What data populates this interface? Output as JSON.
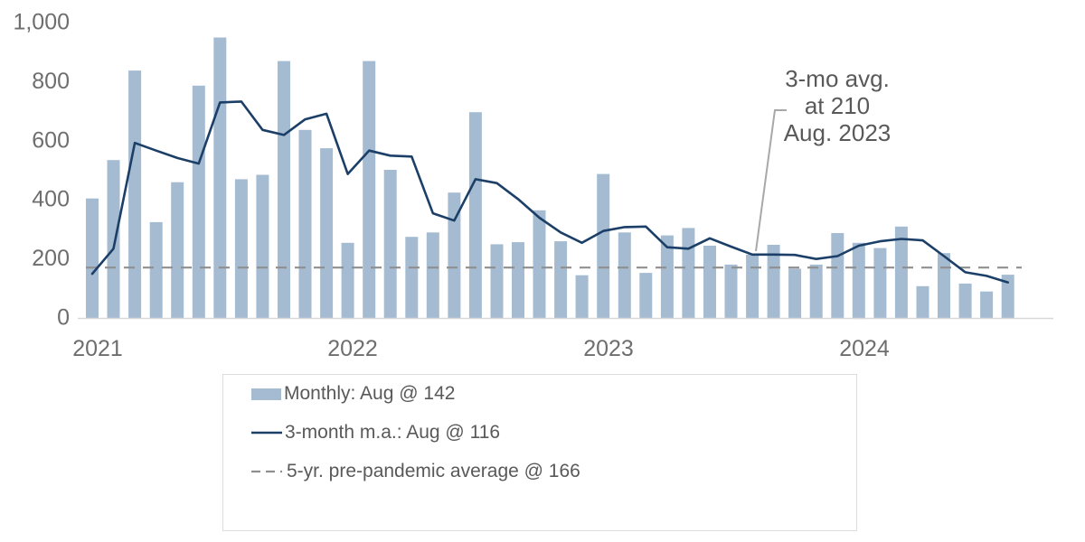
{
  "page": {
    "background": "#ffffff"
  },
  "colors": {
    "bar": "#a5bbd2",
    "ma_line": "#1c3f68",
    "dashed_line": "#8f8f8f",
    "axis_line": "#d9d9d9",
    "tick_text": "#6e6e6e",
    "legend_text": "#595959",
    "annotation_text": "#595959",
    "callout_line": "#a8a8a8",
    "legend_border": "#dcdcdc"
  },
  "chart_data": {
    "type": "bar",
    "title": "",
    "xlabel": "",
    "ylabel": "",
    "ylim": [
      0,
      1000
    ],
    "grid": false,
    "legend_position": "bottom",
    "months": [
      "Jan 2021",
      "Feb 2021",
      "Mar 2021",
      "Apr 2021",
      "May 2021",
      "Jun 2021",
      "Jul 2021",
      "Aug 2021",
      "Sep 2021",
      "Oct 2021",
      "Nov 2021",
      "Dec 2021",
      "Jan 2022",
      "Feb 2022",
      "Mar 2022",
      "Apr 2022",
      "May 2022",
      "Jun 2022",
      "Jul 2022",
      "Aug 2022",
      "Sep 2022",
      "Oct 2022",
      "Nov 2022",
      "Dec 2022",
      "Jan 2023",
      "Feb 2023",
      "Mar 2023",
      "Apr 2023",
      "May 2023",
      "Jun 2023",
      "Jul 2023",
      "Aug 2023",
      "Sep 2023",
      "Oct 2023",
      "Nov 2023",
      "Dec 2023",
      "Jan 2024",
      "Feb 2024",
      "Mar 2024",
      "Apr 2024",
      "May 2024",
      "Jun 2024",
      "Jul 2024",
      "Aug 2024"
    ],
    "series": [
      {
        "name": "Monthly: Aug @ 142",
        "type": "bar",
        "values": [
          400,
          530,
          833,
          320,
          455,
          782,
          945,
          465,
          480,
          865,
          632,
          570,
          250,
          865,
          497,
          270,
          285,
          420,
          692,
          245,
          252,
          360,
          255,
          140,
          483,
          285,
          148,
          275,
          300,
          240,
          176,
          210,
          243,
          162,
          176,
          283,
          250,
          232,
          305,
          103,
          215,
          112,
          85,
          142
        ]
      },
      {
        "name": "3-month m.a.: Aug @ 116",
        "type": "line",
        "values": [
          145,
          230,
          588,
          562,
          537,
          518,
          725,
          728,
          632,
          615,
          668,
          687,
          483,
          562,
          545,
          542,
          350,
          325,
          465,
          452,
          398,
          335,
          285,
          250,
          290,
          303,
          305,
          235,
          230,
          265,
          237,
          210,
          210,
          209,
          195,
          205,
          240,
          255,
          263,
          258,
          205,
          150,
          138,
          116
        ]
      },
      {
        "name": "5-yr. pre-pandemic average @ 166",
        "type": "reference-line",
        "value": 166
      }
    ],
    "yticks": [
      {
        "label": "0",
        "value": 0
      },
      {
        "label": "200",
        "value": 200
      },
      {
        "label": "400",
        "value": 400
      },
      {
        "label": "600",
        "value": 600
      },
      {
        "label": "800",
        "value": 800
      },
      {
        "label": "1,000",
        "value": 1000
      }
    ],
    "xticks": [
      {
        "label": "2021",
        "month_index": 0
      },
      {
        "label": "2022",
        "month_index": 12
      },
      {
        "label": "2023",
        "month_index": 24
      },
      {
        "label": "2024",
        "month_index": 36
      }
    ],
    "annotation": {
      "lines": [
        "3-mo avg.",
        "at 210",
        "Aug. 2023"
      ],
      "month": "Aug 2023",
      "value": 210
    }
  }
}
